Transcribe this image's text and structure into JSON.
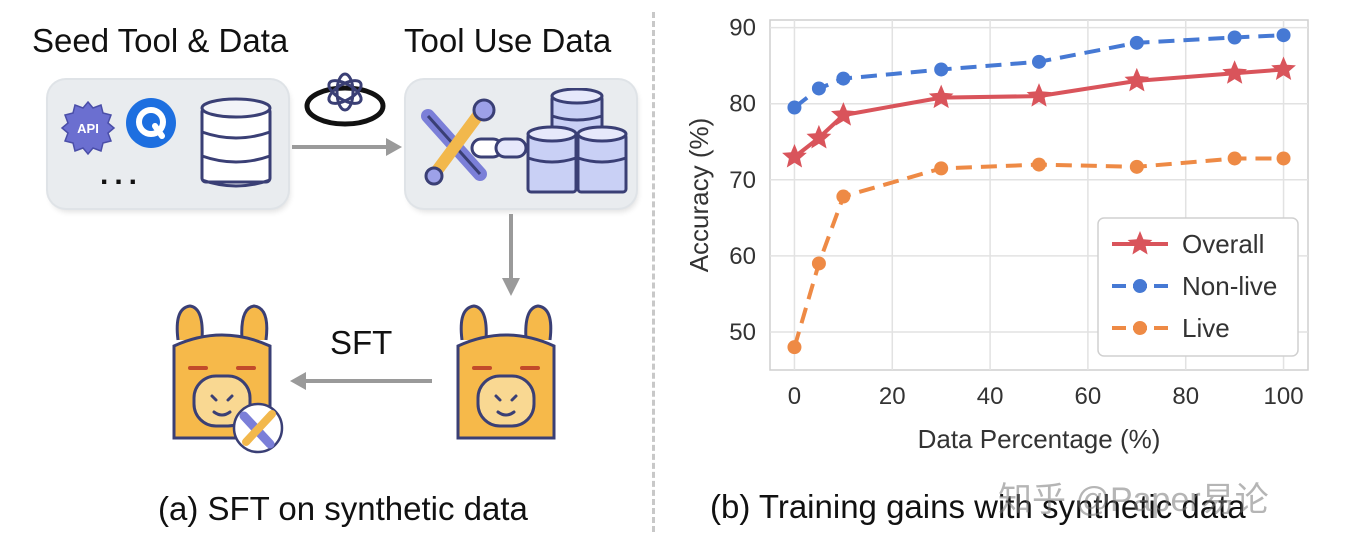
{
  "left_panel": {
    "seed_label": "Seed Tool & Data",
    "tooluse_label": "Tool Use Data",
    "api_badge": "API",
    "ellipsis": "...",
    "sft_label": "SFT",
    "caption": "(a) SFT on synthetic data"
  },
  "right_panel": {
    "caption": "(b) Training gains with synthetic data"
  },
  "watermark": "知乎 @Paper易论",
  "colors": {
    "overall": "#d9545b",
    "nonlive": "#4679d4",
    "live": "#ee8a45",
    "arrow": "#9a9a9a",
    "llama": "#f6b94a"
  },
  "chart_data": {
    "type": "line",
    "title": "",
    "xlabel": "Data Percentage (%)",
    "ylabel": "Accuracy (%)",
    "xlim": [
      -5,
      105
    ],
    "ylim": [
      45,
      91
    ],
    "xticks": [
      0,
      20,
      40,
      60,
      80,
      100
    ],
    "yticks": [
      50,
      60,
      70,
      80,
      90
    ],
    "grid": true,
    "legend_position": "lower-right",
    "series": [
      {
        "name": "Overall",
        "marker": "star",
        "style": "solid",
        "x": [
          0,
          5,
          10,
          30,
          50,
          70,
          90,
          100
        ],
        "y": [
          73.0,
          75.5,
          78.5,
          80.8,
          81.0,
          83.0,
          84.0,
          84.5
        ]
      },
      {
        "name": "Non-live",
        "marker": "circle",
        "style": "dashed",
        "x": [
          0,
          5,
          10,
          30,
          50,
          70,
          90,
          100
        ],
        "y": [
          79.5,
          82.0,
          83.3,
          84.5,
          85.5,
          88.0,
          88.7,
          89.0
        ]
      },
      {
        "name": "Live",
        "marker": "circle",
        "style": "dashed",
        "x": [
          0,
          5,
          10,
          30,
          50,
          70,
          90,
          100
        ],
        "y": [
          48.0,
          59.0,
          67.8,
          71.5,
          72.0,
          71.7,
          72.8,
          72.8
        ]
      }
    ]
  }
}
